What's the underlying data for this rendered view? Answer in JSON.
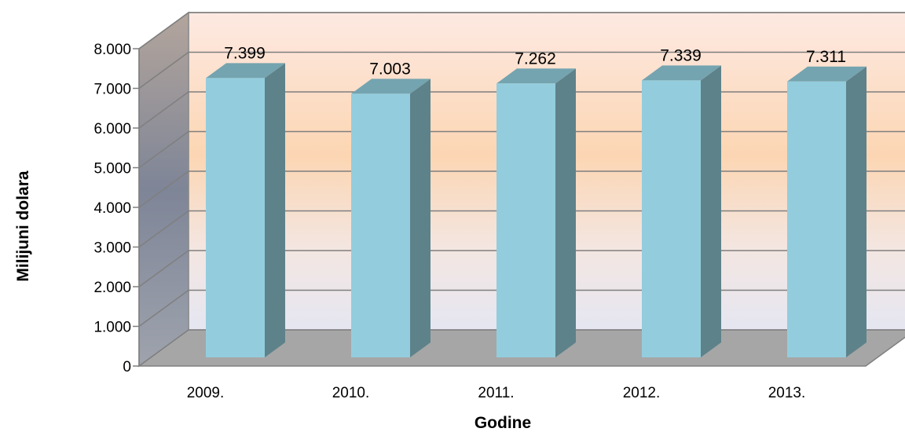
{
  "chart_data": {
    "type": "bar",
    "categories": [
      "2009.",
      "2010.",
      "2011.",
      "2012.",
      "2013."
    ],
    "values": [
      7399,
      7003,
      7262,
      7339,
      7311
    ],
    "value_labels": [
      "7.399",
      "7.003",
      "7.262",
      "7.339",
      "7.311"
    ],
    "xlabel": "Godine",
    "ylabel": "Milijuni dolara",
    "ylim": [
      0,
      8000
    ],
    "yticks": [
      0,
      1000,
      2000,
      3000,
      4000,
      5000,
      6000,
      7000,
      8000
    ],
    "ytick_labels": [
      "0",
      "1.000",
      "2.000",
      "3.000",
      "4.000",
      "5.000",
      "6.000",
      "7.000",
      "8.000"
    ],
    "grid": true,
    "style": "3d",
    "colors": {
      "bar_front": "#93cddd",
      "bar_side": "#5e828a",
      "bar_top": "#74a4b0",
      "floor": "#a6a6a6",
      "gridline": "#7f7f7f"
    }
  }
}
